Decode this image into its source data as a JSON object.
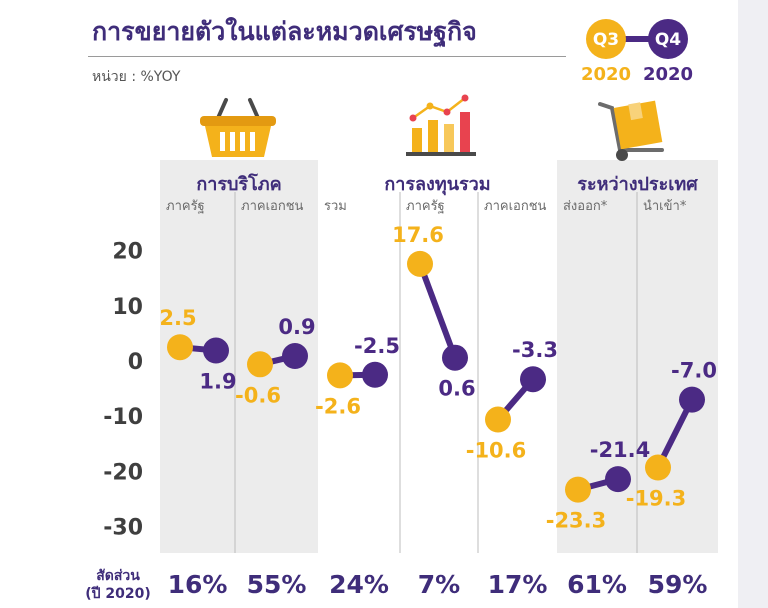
{
  "title": "การขยายตัวในแต่ละหมวดเศรษฐกิจ",
  "unit_label": "หน่วย : %YOY",
  "legend": {
    "q3_quarter": "Q3",
    "q3_year": "2020",
    "q4_quarter": "Q4",
    "q4_year": "2020"
  },
  "colors": {
    "q3": "#f4b21b",
    "q4": "#4b2a84",
    "grid": "#bdbdbd",
    "shade": "#ececec",
    "text_dark": "#3f3f3f"
  },
  "icons": [
    "shopping-basket-icon",
    "growth-chart-icon",
    "hand-truck-boxes-icon"
  ],
  "share_label_line1": "สัดส่วน",
  "share_label_line2": "(ปี 2020)",
  "chart_data": {
    "type": "line",
    "yticks": [
      "20",
      "10",
      "0",
      "-10",
      "-20",
      "-30"
    ],
    "ylim": [
      -30,
      20
    ],
    "groups": [
      {
        "name": "การบริโภค",
        "shaded": true
      },
      {
        "name": "การลงทุนรวม",
        "shaded": false
      },
      {
        "name": "ระหว่างประเทศ",
        "shaded": true
      }
    ],
    "categories": [
      {
        "label": "ภาครัฐ",
        "group": 0,
        "q3": 2.5,
        "q4": 1.9,
        "q3_label": "2.5",
        "q4_label": "1.9",
        "share": "16%"
      },
      {
        "label": "ภาคเอกชน",
        "group": 0,
        "q3": -0.6,
        "q4": 0.9,
        "q3_label": "-0.6",
        "q4_label": "0.9",
        "share": "55%"
      },
      {
        "label": "รวม",
        "group": 1,
        "q3": -2.6,
        "q4": -2.5,
        "q3_label": "-2.6",
        "q4_label": "-2.5",
        "share": "24%"
      },
      {
        "label": "ภาครัฐ",
        "group": 1,
        "q3": 17.6,
        "q4": 0.6,
        "q3_label": "17.6",
        "q4_label": "0.6",
        "share": "7%"
      },
      {
        "label": "ภาคเอกชน",
        "group": 1,
        "q3": -10.6,
        "q4": -3.3,
        "q3_label": "-10.6",
        "q4_label": "-3.3",
        "share": "17%"
      },
      {
        "label": "ส่งออก*",
        "group": 2,
        "q3": -23.3,
        "q4": -21.4,
        "q3_label": "-23.3",
        "q4_label": "-21.4",
        "share": "61%"
      },
      {
        "label": "นำเข้า*",
        "group": 2,
        "q3": -19.3,
        "q4": -7.0,
        "q3_label": "-19.3",
        "q4_label": "-7.0",
        "share": "59%"
      }
    ]
  }
}
